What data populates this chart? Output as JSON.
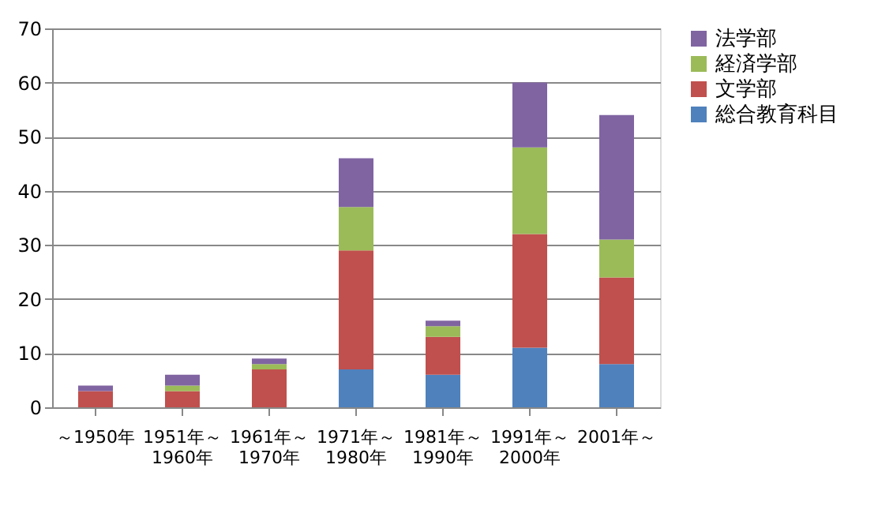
{
  "chart_data": {
    "type": "bar",
    "stacked": true,
    "categories": [
      "～1950年",
      "1951年～\n1960年",
      "1961年～\n1970年",
      "1971年～\n1980年",
      "1981年～\n1990年",
      "1991年～\n2000年",
      "2001年～"
    ],
    "series": [
      {
        "name": "総合教育科目",
        "color": "#4f81bd",
        "values": [
          0,
          0,
          0,
          7,
          6,
          11,
          8
        ]
      },
      {
        "name": "文学部",
        "color": "#c0504d",
        "values": [
          3,
          3,
          7,
          22,
          7,
          21,
          16
        ]
      },
      {
        "name": "経済学部",
        "color": "#9bbb59",
        "values": [
          0,
          1,
          1,
          8,
          2,
          16,
          7
        ]
      },
      {
        "name": "法学部",
        "color": "#8064a2",
        "values": [
          1,
          2,
          1,
          9,
          1,
          12,
          23
        ]
      }
    ],
    "ylim": [
      0,
      70
    ],
    "yticks": [
      0,
      10,
      20,
      30,
      40,
      50,
      60,
      70
    ],
    "grid": "y",
    "legend": "right"
  }
}
